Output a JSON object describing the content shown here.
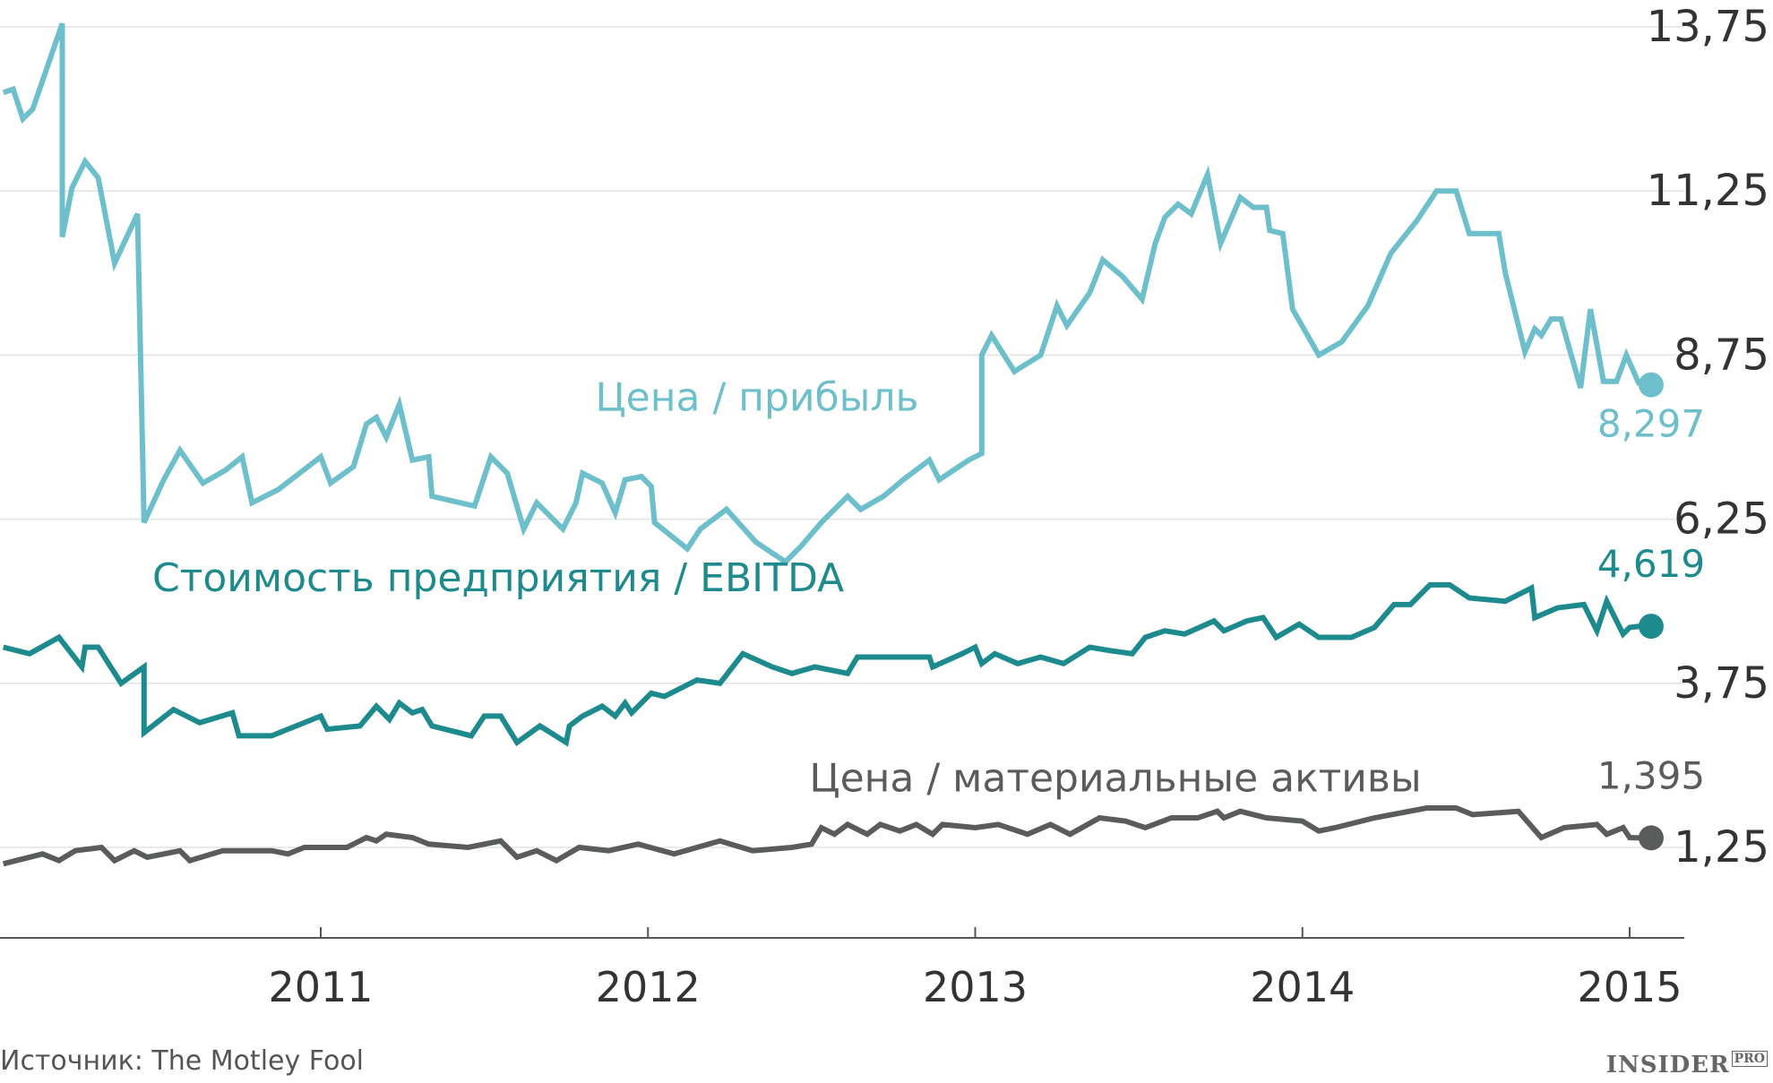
{
  "chart_data": {
    "type": "line",
    "title": "",
    "xlabel": "",
    "ylabel": "",
    "xlim": [
      2010.02,
      2015.15
    ],
    "ylim": [
      -0.2,
      14.0
    ],
    "y_ticks": [
      {
        "value": 1.25,
        "label": "1,25"
      },
      {
        "value": 3.75,
        "label": "3,75"
      },
      {
        "value": 6.25,
        "label": "6,25"
      },
      {
        "value": 8.75,
        "label": "8,75"
      },
      {
        "value": 11.25,
        "label": "11,25"
      },
      {
        "value": 13.75,
        "label": "13,75"
      }
    ],
    "x_ticks": [
      {
        "value": 2011,
        "label": "2011"
      },
      {
        "value": 2012,
        "label": "2012"
      },
      {
        "value": 2013,
        "label": "2013"
      },
      {
        "value": 2014,
        "label": "2014"
      },
      {
        "value": 2015,
        "label": "2015"
      }
    ],
    "grid": "horizontal",
    "series": [
      {
        "name": "Цена / прибыль",
        "color": "#6dbfcb",
        "end_label": "8,297",
        "end_value": 8.297,
        "points": [
          [
            2010.03,
            12.75
          ],
          [
            2010.06,
            12.8
          ],
          [
            2010.09,
            12.35
          ],
          [
            2010.12,
            12.5
          ],
          [
            2010.21,
            13.8
          ],
          [
            2010.21,
            10.55
          ],
          [
            2010.24,
            11.3
          ],
          [
            2010.28,
            11.7
          ],
          [
            2010.32,
            11.45
          ],
          [
            2010.37,
            10.15
          ],
          [
            2010.44,
            10.9
          ],
          [
            2010.46,
            6.2
          ],
          [
            2010.52,
            6.85
          ],
          [
            2010.57,
            7.3
          ],
          [
            2010.64,
            6.8
          ],
          [
            2010.71,
            7.0
          ],
          [
            2010.76,
            7.2
          ],
          [
            2010.79,
            6.5
          ],
          [
            2010.87,
            6.7
          ],
          [
            2011.0,
            7.2
          ],
          [
            2011.03,
            6.8
          ],
          [
            2011.1,
            7.05
          ],
          [
            2011.14,
            7.7
          ],
          [
            2011.17,
            7.8
          ],
          [
            2011.2,
            7.5
          ],
          [
            2011.24,
            8.0
          ],
          [
            2011.28,
            7.15
          ],
          [
            2011.33,
            7.2
          ],
          [
            2011.34,
            6.6
          ],
          [
            2011.47,
            6.45
          ],
          [
            2011.52,
            7.2
          ],
          [
            2011.57,
            6.95
          ],
          [
            2011.62,
            6.1
          ],
          [
            2011.66,
            6.5
          ],
          [
            2011.74,
            6.1
          ],
          [
            2011.78,
            6.5
          ],
          [
            2011.8,
            6.95
          ],
          [
            2011.86,
            6.8
          ],
          [
            2011.9,
            6.35
          ],
          [
            2011.93,
            6.85
          ],
          [
            2011.98,
            6.9
          ],
          [
            2012.01,
            6.75
          ],
          [
            2012.02,
            6.2
          ],
          [
            2012.12,
            5.8
          ],
          [
            2012.16,
            6.1
          ],
          [
            2012.24,
            6.4
          ],
          [
            2012.33,
            5.9
          ],
          [
            2012.42,
            5.6
          ],
          [
            2012.47,
            5.85
          ],
          [
            2012.53,
            6.2
          ],
          [
            2012.61,
            6.6
          ],
          [
            2012.65,
            6.4
          ],
          [
            2012.72,
            6.6
          ],
          [
            2012.78,
            6.85
          ],
          [
            2012.86,
            7.15
          ],
          [
            2012.89,
            6.85
          ],
          [
            2012.98,
            7.15
          ],
          [
            2013.02,
            7.25
          ],
          [
            2013.02,
            8.75
          ],
          [
            2013.05,
            9.05
          ],
          [
            2013.12,
            8.5
          ],
          [
            2013.2,
            8.75
          ],
          [
            2013.25,
            9.5
          ],
          [
            2013.28,
            9.2
          ],
          [
            2013.35,
            9.7
          ],
          [
            2013.39,
            10.2
          ],
          [
            2013.45,
            9.95
          ],
          [
            2013.51,
            9.6
          ],
          [
            2013.55,
            10.45
          ],
          [
            2013.58,
            10.85
          ],
          [
            2013.62,
            11.05
          ],
          [
            2013.66,
            10.9
          ],
          [
            2013.71,
            11.5
          ],
          [
            2013.75,
            10.45
          ],
          [
            2013.81,
            11.15
          ],
          [
            2013.85,
            11.0
          ],
          [
            2013.89,
            11.0
          ],
          [
            2013.9,
            10.65
          ],
          [
            2013.94,
            10.6
          ],
          [
            2013.97,
            9.45
          ],
          [
            2014.05,
            8.75
          ],
          [
            2014.12,
            8.95
          ],
          [
            2014.2,
            9.5
          ],
          [
            2014.27,
            10.3
          ],
          [
            2014.35,
            10.8
          ],
          [
            2014.41,
            11.25
          ],
          [
            2014.47,
            11.25
          ],
          [
            2014.51,
            10.6
          ],
          [
            2014.6,
            10.6
          ],
          [
            2014.62,
            10.0
          ],
          [
            2014.68,
            8.8
          ],
          [
            2014.71,
            9.15
          ],
          [
            2014.73,
            9.05
          ],
          [
            2014.76,
            9.3
          ],
          [
            2014.79,
            9.3
          ],
          [
            2014.85,
            8.25
          ],
          [
            2014.88,
            9.45
          ],
          [
            2014.92,
            8.35
          ],
          [
            2014.96,
            8.35
          ],
          [
            2014.99,
            8.75
          ],
          [
            2015.03,
            8.297
          ]
        ]
      },
      {
        "name": "Стоимость предприятия / EBITDA",
        "color": "#1d8b8e",
        "end_label": "4,619",
        "end_value": 4.619,
        "points": [
          [
            2010.03,
            4.3
          ],
          [
            2010.11,
            4.2
          ],
          [
            2010.2,
            4.45
          ],
          [
            2010.27,
            4.0
          ],
          [
            2010.28,
            4.3
          ],
          [
            2010.32,
            4.3
          ],
          [
            2010.39,
            3.75
          ],
          [
            2010.46,
            4.0
          ],
          [
            2010.46,
            3.0
          ],
          [
            2010.55,
            3.35
          ],
          [
            2010.63,
            3.15
          ],
          [
            2010.73,
            3.3
          ],
          [
            2010.75,
            2.95
          ],
          [
            2010.85,
            2.95
          ],
          [
            2011.0,
            3.25
          ],
          [
            2011.02,
            3.05
          ],
          [
            2011.12,
            3.1
          ],
          [
            2011.17,
            3.4
          ],
          [
            2011.21,
            3.2
          ],
          [
            2011.24,
            3.45
          ],
          [
            2011.28,
            3.3
          ],
          [
            2011.31,
            3.35
          ],
          [
            2011.34,
            3.1
          ],
          [
            2011.46,
            2.95
          ],
          [
            2011.5,
            3.25
          ],
          [
            2011.55,
            3.25
          ],
          [
            2011.6,
            2.85
          ],
          [
            2011.67,
            3.1
          ],
          [
            2011.75,
            2.85
          ],
          [
            2011.76,
            3.1
          ],
          [
            2011.8,
            3.25
          ],
          [
            2011.86,
            3.4
          ],
          [
            2011.9,
            3.25
          ],
          [
            2011.93,
            3.45
          ],
          [
            2011.95,
            3.3
          ],
          [
            2012.01,
            3.6
          ],
          [
            2012.05,
            3.55
          ],
          [
            2012.11,
            3.7
          ],
          [
            2012.15,
            3.8
          ],
          [
            2012.22,
            3.75
          ],
          [
            2012.29,
            4.2
          ],
          [
            2012.38,
            4.0
          ],
          [
            2012.44,
            3.9
          ],
          [
            2012.51,
            4.0
          ],
          [
            2012.61,
            3.9
          ],
          [
            2012.64,
            4.15
          ],
          [
            2012.73,
            4.15
          ],
          [
            2012.86,
            4.15
          ],
          [
            2012.87,
            4.0
          ],
          [
            2012.96,
            4.2
          ],
          [
            2013.0,
            4.3
          ],
          [
            2013.02,
            4.05
          ],
          [
            2013.06,
            4.2
          ],
          [
            2013.13,
            4.05
          ],
          [
            2013.2,
            4.15
          ],
          [
            2013.27,
            4.05
          ],
          [
            2013.35,
            4.3
          ],
          [
            2013.41,
            4.25
          ],
          [
            2013.48,
            4.2
          ],
          [
            2013.52,
            4.45
          ],
          [
            2013.58,
            4.55
          ],
          [
            2013.64,
            4.5
          ],
          [
            2013.73,
            4.7
          ],
          [
            2013.76,
            4.55
          ],
          [
            2013.83,
            4.7
          ],
          [
            2013.88,
            4.75
          ],
          [
            2013.92,
            4.45
          ],
          [
            2013.99,
            4.65
          ],
          [
            2014.05,
            4.45
          ],
          [
            2014.15,
            4.45
          ],
          [
            2014.22,
            4.6
          ],
          [
            2014.28,
            4.95
          ],
          [
            2014.33,
            4.95
          ],
          [
            2014.39,
            5.25
          ],
          [
            2014.45,
            5.25
          ],
          [
            2014.51,
            5.05
          ],
          [
            2014.62,
            5.0
          ],
          [
            2014.7,
            5.2
          ],
          [
            2014.71,
            4.75
          ],
          [
            2014.78,
            4.9
          ],
          [
            2014.86,
            4.95
          ],
          [
            2014.9,
            4.55
          ],
          [
            2014.93,
            5.0
          ],
          [
            2014.98,
            4.5
          ],
          [
            2015.0,
            4.6
          ],
          [
            2015.03,
            4.619
          ]
        ]
      },
      {
        "name": "Цена / материальные активы",
        "color": "#5a5c5c",
        "end_label": "1,395",
        "end_value": 1.395,
        "points": [
          [
            2010.03,
            1.0
          ],
          [
            2010.15,
            1.15
          ],
          [
            2010.2,
            1.05
          ],
          [
            2010.25,
            1.2
          ],
          [
            2010.33,
            1.25
          ],
          [
            2010.37,
            1.05
          ],
          [
            2010.43,
            1.2
          ],
          [
            2010.47,
            1.1
          ],
          [
            2010.57,
            1.2
          ],
          [
            2010.6,
            1.05
          ],
          [
            2010.7,
            1.2
          ],
          [
            2010.85,
            1.2
          ],
          [
            2010.9,
            1.15
          ],
          [
            2010.95,
            1.25
          ],
          [
            2011.08,
            1.25
          ],
          [
            2011.14,
            1.4
          ],
          [
            2011.17,
            1.35
          ],
          [
            2011.2,
            1.45
          ],
          [
            2011.28,
            1.4
          ],
          [
            2011.33,
            1.3
          ],
          [
            2011.45,
            1.25
          ],
          [
            2011.55,
            1.35
          ],
          [
            2011.6,
            1.1
          ],
          [
            2011.66,
            1.2
          ],
          [
            2011.72,
            1.05
          ],
          [
            2011.79,
            1.25
          ],
          [
            2011.88,
            1.2
          ],
          [
            2011.97,
            1.3
          ],
          [
            2012.08,
            1.15
          ],
          [
            2012.15,
            1.25
          ],
          [
            2012.22,
            1.35
          ],
          [
            2012.32,
            1.2
          ],
          [
            2012.44,
            1.25
          ],
          [
            2012.5,
            1.3
          ],
          [
            2012.53,
            1.55
          ],
          [
            2012.57,
            1.45
          ],
          [
            2012.61,
            1.6
          ],
          [
            2012.67,
            1.45
          ],
          [
            2012.71,
            1.6
          ],
          [
            2012.77,
            1.5
          ],
          [
            2012.82,
            1.6
          ],
          [
            2012.87,
            1.45
          ],
          [
            2012.9,
            1.6
          ],
          [
            2013.0,
            1.55
          ],
          [
            2013.07,
            1.6
          ],
          [
            2013.16,
            1.45
          ],
          [
            2013.23,
            1.6
          ],
          [
            2013.29,
            1.45
          ],
          [
            2013.38,
            1.7
          ],
          [
            2013.46,
            1.65
          ],
          [
            2013.52,
            1.55
          ],
          [
            2013.6,
            1.7
          ],
          [
            2013.68,
            1.7
          ],
          [
            2013.74,
            1.8
          ],
          [
            2013.76,
            1.7
          ],
          [
            2013.81,
            1.8
          ],
          [
            2013.89,
            1.7
          ],
          [
            2014.0,
            1.65
          ],
          [
            2014.05,
            1.5
          ],
          [
            2014.1,
            1.55
          ],
          [
            2014.22,
            1.7
          ],
          [
            2014.38,
            1.85
          ],
          [
            2014.47,
            1.85
          ],
          [
            2014.52,
            1.75
          ],
          [
            2014.66,
            1.8
          ],
          [
            2014.73,
            1.4
          ],
          [
            2014.8,
            1.55
          ],
          [
            2014.9,
            1.6
          ],
          [
            2014.93,
            1.45
          ],
          [
            2014.98,
            1.55
          ],
          [
            2015.0,
            1.4
          ],
          [
            2015.03,
            1.395
          ]
        ]
      }
    ],
    "series_label_positions": [
      {
        "series": 0,
        "x": 2011.85,
        "y": 7.9
      },
      {
        "series": 1,
        "x": 2010.95,
        "y": 5.15
      },
      {
        "series": 2,
        "x": 2012.9,
        "y": 2.1
      }
    ]
  },
  "footer": {
    "source": "Источник: The Motley Fool",
    "brand": "INSIDER",
    "brand_sub": "PRO"
  }
}
